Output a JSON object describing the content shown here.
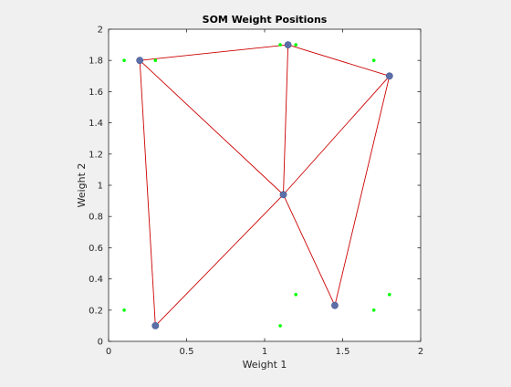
{
  "chart_data": {
    "type": "scatter",
    "title": "SOM Weight Positions",
    "xlabel": "Weight 1",
    "ylabel": "Weight 2",
    "xlim": [
      0,
      2
    ],
    "ylim": [
      0,
      2
    ],
    "x_ticks": [
      0,
      0.5,
      1,
      1.5,
      2
    ],
    "x_tick_labels": [
      "0",
      "0.5",
      "1",
      "1.5",
      "2"
    ],
    "y_ticks": [
      0,
      0.2,
      0.4,
      0.6,
      0.8,
      1,
      1.2,
      1.4,
      1.6,
      1.8,
      2
    ],
    "y_tick_labels": [
      "0",
      "0.2",
      "0.4",
      "0.6",
      "0.8",
      "1",
      "1.2",
      "1.4",
      "1.6",
      "1.8",
      "2"
    ],
    "grid": false,
    "input_points": {
      "color": "#00ff00",
      "points": [
        [
          0.1,
          1.8
        ],
        [
          0.3,
          1.8
        ],
        [
          1.1,
          1.9
        ],
        [
          1.2,
          1.9
        ],
        [
          1.7,
          1.8
        ],
        [
          0.1,
          0.2
        ],
        [
          1.1,
          0.1
        ],
        [
          1.2,
          0.3
        ],
        [
          1.7,
          0.2
        ],
        [
          1.8,
          0.3
        ]
      ]
    },
    "neurons": {
      "color": "#5b6fa8",
      "points": [
        [
          0.2,
          1.8
        ],
        [
          1.15,
          1.9
        ],
        [
          1.8,
          1.7
        ],
        [
          1.12,
          0.94
        ],
        [
          0.3,
          0.1
        ],
        [
          1.45,
          0.23
        ]
      ]
    },
    "connections": {
      "color": "#cc0000",
      "edges": [
        [
          0,
          1
        ],
        [
          1,
          2
        ],
        [
          0,
          3
        ],
        [
          1,
          3
        ],
        [
          2,
          3
        ],
        [
          0,
          4
        ],
        [
          3,
          4
        ],
        [
          3,
          5
        ],
        [
          2,
          5
        ]
      ]
    }
  }
}
